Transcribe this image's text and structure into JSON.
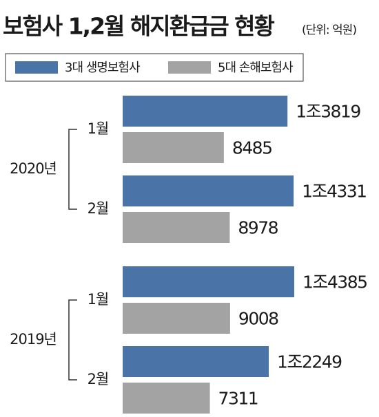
{
  "chart_data": {
    "type": "bar",
    "orientation": "horizontal",
    "title": "보험사 1,2월 해지환급금 현황",
    "subtitle": "(단위: 억원)",
    "groups": [
      {
        "name": "2020년",
        "categories": [
          "1월",
          "2월"
        ]
      },
      {
        "name": "2019년",
        "categories": [
          "1월",
          "2월"
        ]
      }
    ],
    "series": [
      {
        "name": "3대 생명보험사",
        "color": "#4a74a8",
        "values": [
          13819,
          14331,
          14385,
          12249
        ],
        "value_labels": [
          "1조3819",
          "1조4331",
          "1조4385",
          "1조2249"
        ]
      },
      {
        "name": "5대 손해보험사",
        "color": "#a3a3a3",
        "values": [
          8485,
          8978,
          9008,
          7311
        ],
        "value_labels": [
          "8485",
          "8978",
          "9008",
          "7311"
        ]
      }
    ]
  }
}
